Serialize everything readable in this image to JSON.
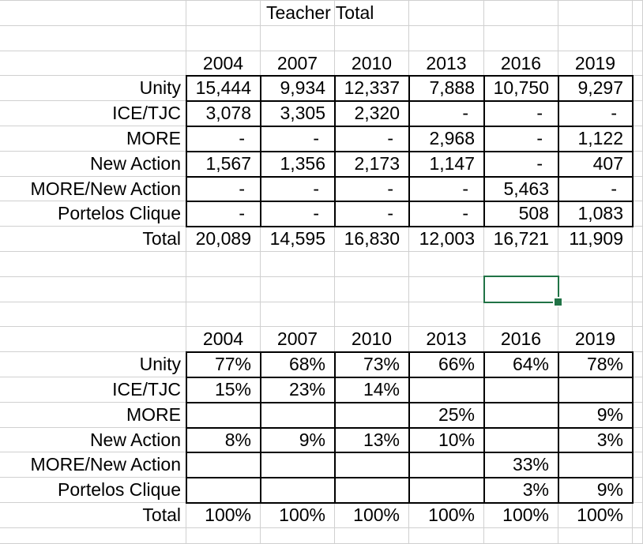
{
  "title": "Teacher Total",
  "colors": {
    "selection": "#217346",
    "gridline": "#d0d0d0",
    "table_border": "#000000",
    "text": "#000000",
    "background": "#ffffff"
  },
  "table1": {
    "years": [
      "2004",
      "2007",
      "2010",
      "2013",
      "2016",
      "2019"
    ],
    "rows": [
      {
        "label": "Unity",
        "values": [
          "15,444",
          "9,934",
          "12,337",
          "7,888",
          "10,750",
          "9,297"
        ]
      },
      {
        "label": "ICE/TJC",
        "values": [
          "3,078",
          "3,305",
          "2,320",
          "-",
          "-",
          "-"
        ]
      },
      {
        "label": "MORE",
        "values": [
          "-",
          "-",
          "-",
          "2,968",
          "-",
          "1,122"
        ]
      },
      {
        "label": "New Action",
        "values": [
          "1,567",
          "1,356",
          "2,173",
          "1,147",
          "-",
          "407"
        ]
      },
      {
        "label": "MORE/New Action",
        "values": [
          "-",
          "-",
          "-",
          "-",
          "5,463",
          "-"
        ]
      },
      {
        "label": "Portelos Clique",
        "values": [
          "-",
          "-",
          "-",
          "-",
          "508",
          "1,083"
        ]
      }
    ],
    "total": {
      "label": "Total",
      "values": [
        "20,089",
        "14,595",
        "16,830",
        "12,003",
        "16,721",
        "11,909"
      ]
    }
  },
  "table2": {
    "years": [
      "2004",
      "2007",
      "2010",
      "2013",
      "2016",
      "2019"
    ],
    "rows": [
      {
        "label": "Unity",
        "values": [
          "77%",
          "68%",
          "73%",
          "66%",
          "64%",
          "78%"
        ]
      },
      {
        "label": "ICE/TJC",
        "values": [
          "15%",
          "23%",
          "14%",
          "",
          "",
          ""
        ]
      },
      {
        "label": "MORE",
        "values": [
          "",
          "",
          "",
          "25%",
          "",
          "9%"
        ]
      },
      {
        "label": "New Action",
        "values": [
          "8%",
          "9%",
          "13%",
          "10%",
          "",
          "3%"
        ]
      },
      {
        "label": "MORE/New Action",
        "values": [
          "",
          "",
          "",
          "",
          "33%",
          ""
        ]
      },
      {
        "label": "Portelos Clique",
        "values": [
          "",
          "",
          "",
          "",
          "3%",
          "9%"
        ]
      }
    ],
    "total": {
      "label": "Total",
      "values": [
        "100%",
        "100%",
        "100%",
        "100%",
        "100%",
        "100%"
      ]
    }
  }
}
